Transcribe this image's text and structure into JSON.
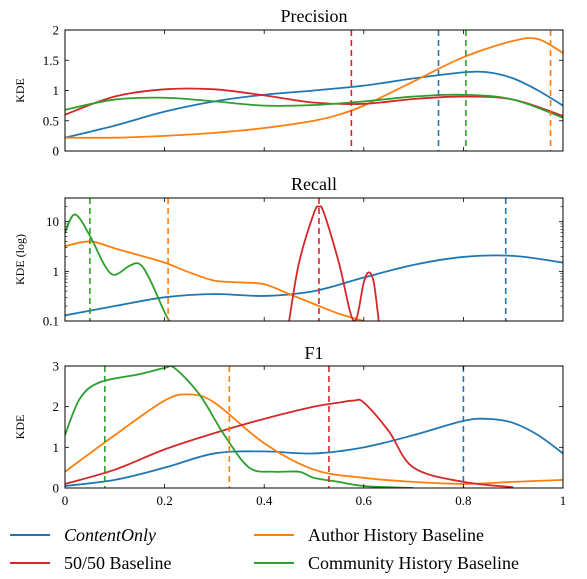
{
  "colors": {
    "content_only": "#1f77b4",
    "author_history": "#ff7f0e",
    "fifty_fifty": "#d62728",
    "community_history": "#2ca02c"
  },
  "legend": [
    {
      "key": "content_only",
      "label": "ContentOnly",
      "italic": true
    },
    {
      "key": "author_history",
      "label": "Author History Baseline",
      "italic": false
    },
    {
      "key": "fifty_fifty",
      "label": "50/50 Baseline",
      "italic": false
    },
    {
      "key": "community_history",
      "label": "Community History Baseline",
      "italic": false
    }
  ],
  "chart_data": [
    {
      "type": "line",
      "title": "Precision",
      "ylabel": "KDE",
      "xlim": [
        0,
        1
      ],
      "ylim": [
        0,
        2
      ],
      "yscale": "linear",
      "xticks": [],
      "yticks": [
        {
          "v": 0,
          "label": "0"
        },
        {
          "v": 0.5,
          "label": "0.5"
        },
        {
          "v": 1,
          "label": "1"
        },
        {
          "v": 1.5,
          "label": "1.5"
        },
        {
          "v": 2,
          "label": "2"
        }
      ],
      "series": [
        {
          "key": "content_only",
          "x": [
            0,
            0.1,
            0.2,
            0.3,
            0.4,
            0.5,
            0.6,
            0.7,
            0.8,
            0.85,
            0.9,
            0.95,
            1.0
          ],
          "y": [
            0.22,
            0.42,
            0.65,
            0.82,
            0.93,
            1.0,
            1.08,
            1.2,
            1.3,
            1.3,
            1.2,
            1.0,
            0.75
          ]
        },
        {
          "key": "author_history",
          "x": [
            0,
            0.1,
            0.2,
            0.3,
            0.4,
            0.5,
            0.55,
            0.6,
            0.7,
            0.8,
            0.9,
            0.95,
            1.0
          ],
          "y": [
            0.22,
            0.22,
            0.25,
            0.3,
            0.38,
            0.5,
            0.6,
            0.75,
            1.15,
            1.55,
            1.82,
            1.85,
            1.62
          ]
        },
        {
          "key": "fifty_fifty",
          "x": [
            0,
            0.1,
            0.2,
            0.3,
            0.4,
            0.5,
            0.6,
            0.7,
            0.8,
            0.9,
            1.0
          ],
          "y": [
            0.6,
            0.9,
            1.02,
            1.02,
            0.92,
            0.8,
            0.78,
            0.86,
            0.9,
            0.85,
            0.58
          ]
        },
        {
          "key": "community_history",
          "x": [
            0,
            0.1,
            0.2,
            0.3,
            0.4,
            0.5,
            0.6,
            0.7,
            0.8,
            0.9,
            1.0
          ],
          "y": [
            0.68,
            0.85,
            0.88,
            0.82,
            0.75,
            0.76,
            0.82,
            0.9,
            0.93,
            0.85,
            0.55
          ]
        }
      ],
      "vlines": [
        {
          "key": "content_only",
          "x": 0.75
        },
        {
          "key": "author_history",
          "x": 0.975
        },
        {
          "key": "fifty_fifty",
          "x": 0.575
        },
        {
          "key": "community_history",
          "x": 0.805
        }
      ]
    },
    {
      "type": "line",
      "title": "Recall",
      "ylabel": "KDE (log)",
      "xlim": [
        0,
        1
      ],
      "ylim": [
        0.1,
        30
      ],
      "yscale": "log",
      "xticks": [],
      "yticks": [
        {
          "v": 0.1,
          "label": "0.1"
        },
        {
          "v": 1,
          "label": "1"
        },
        {
          "v": 10,
          "label": "10"
        }
      ],
      "series": [
        {
          "key": "content_only",
          "x": [
            0,
            0.1,
            0.2,
            0.3,
            0.4,
            0.5,
            0.6,
            0.7,
            0.8,
            0.9,
            1.0
          ],
          "y": [
            0.13,
            0.2,
            0.3,
            0.35,
            0.32,
            0.4,
            0.75,
            1.35,
            1.95,
            2.05,
            1.5
          ]
        },
        {
          "key": "author_history",
          "x": [
            0,
            0.05,
            0.1,
            0.15,
            0.2,
            0.25,
            0.3,
            0.35,
            0.4,
            0.45,
            0.5,
            0.55,
            0.6
          ],
          "y": [
            3.2,
            4.0,
            2.9,
            2.1,
            1.5,
            0.95,
            0.65,
            0.6,
            0.55,
            0.35,
            0.22,
            0.14,
            0.1
          ]
        },
        {
          "key": "fifty_fifty",
          "x": [
            0.45,
            0.47,
            0.5,
            0.51,
            0.52,
            0.55,
            0.58,
            0.6,
            0.61,
            0.62,
            0.63
          ],
          "y": [
            0.1,
            1.5,
            15,
            20,
            15,
            1.5,
            0.1,
            0.6,
            0.95,
            0.6,
            0.1
          ]
        },
        {
          "key": "community_history",
          "x": [
            0,
            0.02,
            0.05,
            0.08,
            0.1,
            0.13,
            0.15,
            0.17,
            0.2,
            0.21
          ],
          "y": [
            6,
            14,
            5.2,
            1.3,
            0.85,
            1.3,
            1.4,
            0.7,
            0.15,
            0.1
          ]
        }
      ],
      "vlines": [
        {
          "key": "content_only",
          "x": 0.885
        },
        {
          "key": "author_history",
          "x": 0.207
        },
        {
          "key": "fifty_fifty",
          "x": 0.51
        },
        {
          "key": "community_history",
          "x": 0.05
        }
      ]
    },
    {
      "type": "line",
      "title": "F1",
      "ylabel": "KDE",
      "xlim": [
        0,
        1
      ],
      "ylim": [
        0,
        3
      ],
      "yscale": "linear",
      "xticks": [
        {
          "v": 0,
          "label": "0"
        },
        {
          "v": 0.2,
          "label": "0.2"
        },
        {
          "v": 0.4,
          "label": "0.4"
        },
        {
          "v": 0.6,
          "label": "0.6"
        },
        {
          "v": 0.8,
          "label": "0.8"
        },
        {
          "v": 1,
          "label": "1"
        }
      ],
      "yticks": [
        {
          "v": 0,
          "label": "0"
        },
        {
          "v": 1,
          "label": "1"
        },
        {
          "v": 2,
          "label": "2"
        },
        {
          "v": 3,
          "label": "3"
        }
      ],
      "series": [
        {
          "key": "content_only",
          "x": [
            0,
            0.1,
            0.2,
            0.3,
            0.4,
            0.5,
            0.6,
            0.7,
            0.8,
            0.85,
            0.9,
            0.95,
            1.0
          ],
          "y": [
            0.05,
            0.2,
            0.5,
            0.85,
            0.9,
            0.85,
            1.0,
            1.3,
            1.65,
            1.7,
            1.6,
            1.3,
            0.85
          ]
        },
        {
          "key": "author_history",
          "x": [
            0,
            0.1,
            0.2,
            0.25,
            0.3,
            0.4,
            0.5,
            0.6,
            0.7,
            0.8,
            0.9,
            1.0
          ],
          "y": [
            0.4,
            1.3,
            2.15,
            2.3,
            2.1,
            1.1,
            0.45,
            0.25,
            0.15,
            0.1,
            0.15,
            0.2
          ]
        },
        {
          "key": "fifty_fifty",
          "x": [
            0,
            0.1,
            0.2,
            0.3,
            0.4,
            0.5,
            0.55,
            0.58,
            0.6,
            0.65,
            0.7,
            0.8,
            0.9
          ],
          "y": [
            0.1,
            0.45,
            0.95,
            1.35,
            1.7,
            2.0,
            2.1,
            2.15,
            2.1,
            1.4,
            0.5,
            0.15,
            0.02
          ]
        },
        {
          "key": "community_history",
          "x": [
            0,
            0.03,
            0.07,
            0.15,
            0.2,
            0.22,
            0.27,
            0.32,
            0.37,
            0.42,
            0.47,
            0.5,
            0.55,
            0.6,
            0.7
          ],
          "y": [
            1.3,
            2.2,
            2.6,
            2.8,
            2.95,
            2.95,
            2.3,
            1.3,
            0.5,
            0.4,
            0.4,
            0.25,
            0.15,
            0.05,
            0
          ]
        }
      ],
      "vlines": [
        {
          "key": "content_only",
          "x": 0.8
        },
        {
          "key": "author_history",
          "x": 0.33
        },
        {
          "key": "fifty_fifty",
          "x": 0.53
        },
        {
          "key": "community_history",
          "x": 0.08
        }
      ]
    }
  ]
}
